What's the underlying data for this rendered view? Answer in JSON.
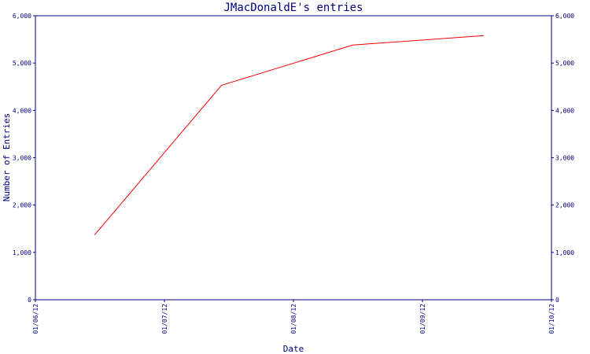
{
  "chart_data": {
    "type": "line",
    "title": "JMacDonaldE's entries",
    "xlabel": "Date",
    "ylabel": "Number of Entries",
    "x_ticks": [
      "01/06/12",
      "01/07/12",
      "01/08/12",
      "01/09/12",
      "01/10/12"
    ],
    "y_ticks": [
      "0",
      "1,000",
      "2,000",
      "3,000",
      "4,000",
      "5,000",
      "6,000"
    ],
    "ylim": [
      0,
      6000
    ],
    "xlim": [
      "2012-06-01",
      "2012-10-01"
    ],
    "grid": false,
    "x": [
      "2012-06-15",
      "2012-07-15",
      "2012-08-15",
      "2012-09-15"
    ],
    "series": [
      {
        "values": [
          1370,
          4530,
          5380,
          5580
        ],
        "color": "#ff0000"
      }
    ]
  }
}
